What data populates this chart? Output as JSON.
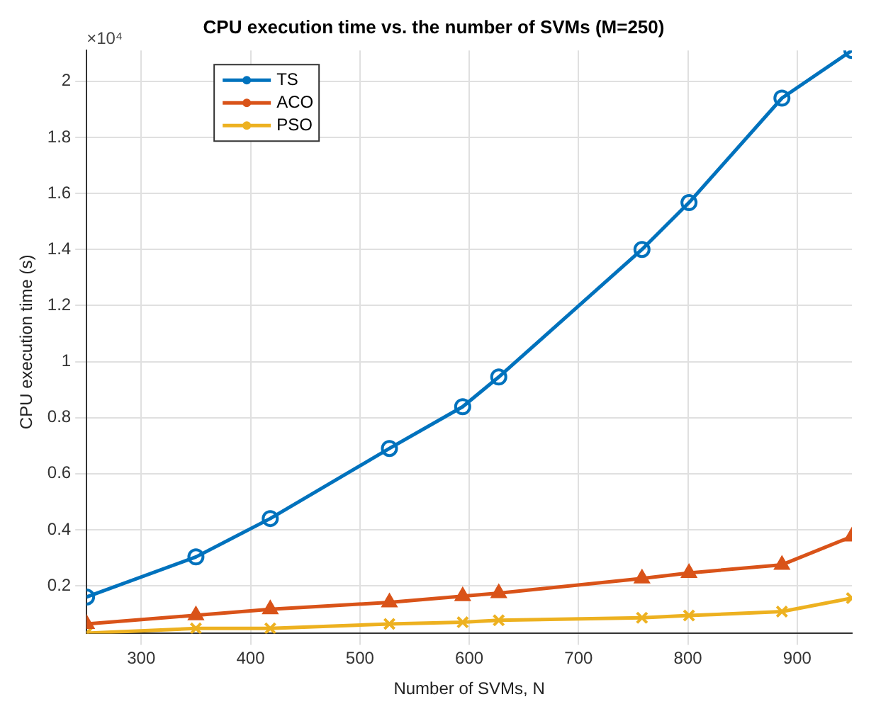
{
  "chart_data": {
    "type": "line",
    "title": "CPU execution time vs. the number of SVMs (M=250)",
    "xlabel": "Number of SVMs, N",
    "ylabel": "CPU execution time (s)",
    "annotations": [
      "×10⁴"
    ],
    "x": [
      250,
      350,
      418,
      527,
      594,
      627,
      758,
      801,
      886,
      950
    ],
    "series": [
      {
        "name": "TS",
        "color": "#0072bd",
        "marker": "circle",
        "values": [
          0.16,
          0.303,
          0.44,
          0.69,
          0.839,
          0.945,
          1.4,
          1.567,
          1.94,
          2.11
        ]
      },
      {
        "name": "ACO",
        "color": "#d95319",
        "marker": "triangle",
        "values": [
          0.064,
          0.095,
          0.116,
          0.141,
          0.163,
          0.174,
          0.226,
          0.246,
          0.275,
          0.376
        ]
      },
      {
        "name": "PSO",
        "color": "#edb120",
        "marker": "cross",
        "values": [
          0.031,
          0.048,
          0.048,
          0.064,
          0.07,
          0.077,
          0.086,
          0.094,
          0.108,
          0.156
        ]
      }
    ],
    "xlim": [
      250,
      950
    ],
    "xticks": [
      300,
      400,
      500,
      600,
      700,
      800,
      900
    ],
    "ylim": [
      0.03,
      2.11
    ],
    "yticks": [
      0.2,
      0.4,
      0.6,
      0.8,
      1,
      1.2,
      1.4,
      1.6,
      1.8,
      2
    ],
    "grid": true,
    "legend": "top left",
    "line_style": "solid"
  }
}
